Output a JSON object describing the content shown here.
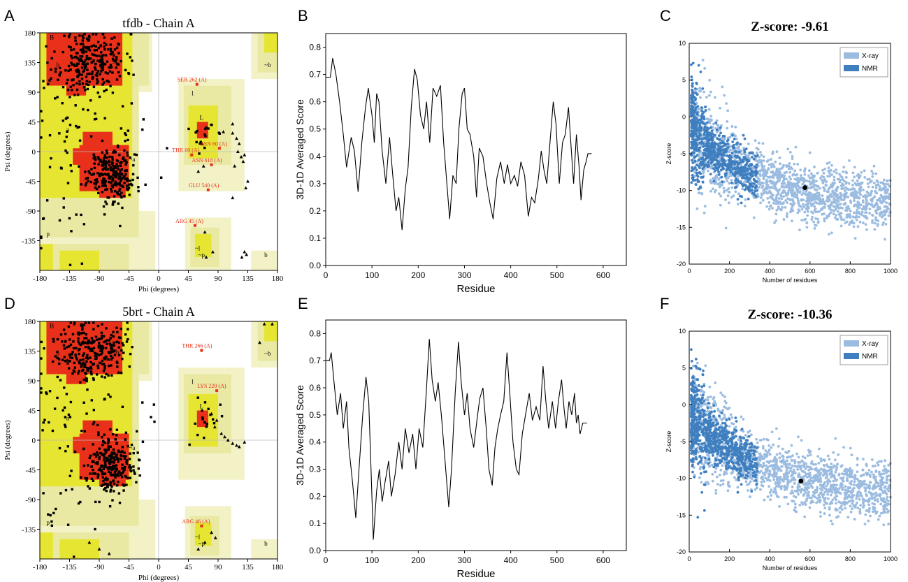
{
  "figure": {
    "panel_letters": [
      "A",
      "B",
      "C",
      "D",
      "E",
      "F"
    ]
  },
  "colors": {
    "core": "#e8301a",
    "allowed": "#e6e632",
    "generous": "#e9e9a3",
    "pale": "#f2f2c6",
    "xray": "#9bbce0",
    "nmr": "#3f7fbf",
    "line": "#000000"
  },
  "chart_data": [
    {
      "id": "A",
      "type": "scatter",
      "subtype": "ramachandran",
      "title": "tfdb - Chain A",
      "xlabel": "Phi (degrees)",
      "ylabel": "Psi (degrees)",
      "xlim": [
        -180,
        180
      ],
      "ylim": [
        -180,
        180
      ],
      "xticks": [
        -180,
        -135,
        -90,
        -45,
        0,
        45,
        90,
        135,
        180
      ],
      "yticks": [
        -135,
        -90,
        -45,
        0,
        45,
        90,
        135,
        180
      ],
      "region_labels": [
        "B",
        "b",
        "~b",
        "l",
        "L",
        "a",
        "~a",
        "~l",
        "p",
        "~p",
        "b",
        "~b"
      ],
      "outliers": [
        {
          "label": "SER 262 (A)",
          "x": 58,
          "y": 102
        },
        {
          "label": "ASN 60 (A)",
          "x": 92,
          "y": 5
        },
        {
          "label": "THR 60 (A)",
          "x": 50,
          "y": -5
        },
        {
          "label": "ASN 618 (A)",
          "x": 80,
          "y": -20
        },
        {
          "label": "GLU 540 (A)",
          "x": 75,
          "y": -58
        },
        {
          "label": "ARG 45 (A)",
          "x": 55,
          "y": -112
        }
      ],
      "gly_points": [
        [
          112,
          28
        ],
        [
          118,
          20
        ],
        [
          122,
          12
        ],
        [
          120,
          0
        ],
        [
          125,
          -8
        ],
        [
          128,
          -15
        ],
        [
          115,
          -22
        ],
        [
          130,
          -5
        ],
        [
          135,
          -45
        ],
        [
          132,
          -55
        ],
        [
          112,
          -70
        ],
        [
          130,
          -152
        ],
        [
          126,
          -160
        ],
        [
          133,
          -156
        ],
        [
          70,
          -122
        ],
        [
          82,
          -152
        ],
        [
          72,
          -160
        ],
        [
          68,
          -22
        ],
        [
          60,
          -30
        ],
        [
          112,
          42
        ],
        [
          98,
          30
        ],
        [
          66,
          12
        ]
      ],
      "cluster_seed": 11
    },
    {
      "id": "B",
      "type": "line",
      "xlabel": "Residue",
      "ylabel": "3D-1D Averaged Score",
      "xlim": [
        0,
        650
      ],
      "ylim": [
        0,
        0.85
      ],
      "xticks": [
        0,
        100,
        200,
        300,
        400,
        500,
        600
      ],
      "yticks": [
        0.0,
        0.1,
        0.2,
        0.3,
        0.4,
        0.5,
        0.6,
        0.7,
        0.8
      ],
      "points": [
        [
          0,
          0.69
        ],
        [
          10,
          0.69
        ],
        [
          15,
          0.76
        ],
        [
          22,
          0.7
        ],
        [
          30,
          0.6
        ],
        [
          38,
          0.48
        ],
        [
          45,
          0.36
        ],
        [
          55,
          0.47
        ],
        [
          62,
          0.42
        ],
        [
          70,
          0.27
        ],
        [
          78,
          0.45
        ],
        [
          86,
          0.58
        ],
        [
          92,
          0.65
        ],
        [
          100,
          0.55
        ],
        [
          105,
          0.45
        ],
        [
          110,
          0.63
        ],
        [
          115,
          0.6
        ],
        [
          122,
          0.42
        ],
        [
          130,
          0.3
        ],
        [
          138,
          0.47
        ],
        [
          145,
          0.33
        ],
        [
          152,
          0.2
        ],
        [
          158,
          0.25
        ],
        [
          165,
          0.13
        ],
        [
          172,
          0.28
        ],
        [
          178,
          0.36
        ],
        [
          185,
          0.58
        ],
        [
          192,
          0.72
        ],
        [
          198,
          0.68
        ],
        [
          205,
          0.55
        ],
        [
          212,
          0.5
        ],
        [
          218,
          0.6
        ],
        [
          225,
          0.45
        ],
        [
          232,
          0.65
        ],
        [
          240,
          0.62
        ],
        [
          248,
          0.66
        ],
        [
          255,
          0.45
        ],
        [
          262,
          0.3
        ],
        [
          268,
          0.17
        ],
        [
          275,
          0.33
        ],
        [
          282,
          0.3
        ],
        [
          288,
          0.5
        ],
        [
          295,
          0.63
        ],
        [
          300,
          0.65
        ],
        [
          306,
          0.5
        ],
        [
          312,
          0.48
        ],
        [
          320,
          0.4
        ],
        [
          326,
          0.25
        ],
        [
          332,
          0.43
        ],
        [
          340,
          0.4
        ],
        [
          348,
          0.3
        ],
        [
          355,
          0.23
        ],
        [
          362,
          0.17
        ],
        [
          370,
          0.32
        ],
        [
          378,
          0.38
        ],
        [
          386,
          0.3
        ],
        [
          393,
          0.37
        ],
        [
          400,
          0.3
        ],
        [
          408,
          0.33
        ],
        [
          415,
          0.29
        ],
        [
          422,
          0.38
        ],
        [
          430,
          0.33
        ],
        [
          438,
          0.18
        ],
        [
          445,
          0.25
        ],
        [
          452,
          0.23
        ],
        [
          460,
          0.32
        ],
        [
          466,
          0.42
        ],
        [
          472,
          0.35
        ],
        [
          478,
          0.3
        ],
        [
          485,
          0.45
        ],
        [
          492,
          0.6
        ],
        [
          498,
          0.52
        ],
        [
          505,
          0.3
        ],
        [
          512,
          0.45
        ],
        [
          518,
          0.48
        ],
        [
          525,
          0.58
        ],
        [
          530,
          0.45
        ],
        [
          536,
          0.3
        ],
        [
          542,
          0.48
        ],
        [
          548,
          0.36
        ],
        [
          552,
          0.24
        ],
        [
          558,
          0.35
        ],
        [
          563,
          0.38
        ],
        [
          567,
          0.41
        ],
        [
          575,
          0.41
        ]
      ]
    },
    {
      "id": "C",
      "type": "scatter",
      "subtype": "prosa_zscore",
      "title": "Z-score: -9.61",
      "xlabel": "Number of residues",
      "ylabel": "Z-score",
      "xlim": [
        0,
        1000
      ],
      "ylim": [
        -20,
        10
      ],
      "xticks": [
        0,
        200,
        400,
        600,
        800,
        1000
      ],
      "yticks": [
        -20,
        -15,
        -10,
        -5,
        0,
        5,
        10
      ],
      "legend": [
        {
          "name": "X-ray"
        },
        {
          "name": "NMR"
        }
      ],
      "legend_position": "top-right",
      "highlight": {
        "x": 575,
        "y": -9.61
      },
      "density_seed": 21
    },
    {
      "id": "D",
      "type": "scatter",
      "subtype": "ramachandran",
      "title": "5brt - Chain A",
      "xlabel": "Phi (degrees)",
      "ylabel": "Psi (degrees)",
      "xlim": [
        -180,
        180
      ],
      "ylim": [
        -180,
        180
      ],
      "xticks": [
        -180,
        -135,
        -90,
        -45,
        0,
        45,
        90,
        135,
        180
      ],
      "yticks": [
        -135,
        -90,
        -45,
        0,
        45,
        90,
        135,
        180
      ],
      "region_labels": [
        "B",
        "b",
        "~b",
        "l",
        "L",
        "a",
        "~a",
        "~l",
        "p",
        "~p",
        "b",
        "~b"
      ],
      "outliers": [
        {
          "label": "THR 266 (A)",
          "x": 65,
          "y": 136
        },
        {
          "label": "LYS 220 (A)",
          "x": 88,
          "y": 75
        },
        {
          "label": "ARG 46 (A)",
          "x": 65,
          "y": -130
        }
      ],
      "gly_points": [
        [
          80,
          40
        ],
        [
          88,
          30
        ],
        [
          85,
          20
        ],
        [
          95,
          10
        ],
        [
          100,
          5
        ],
        [
          105,
          0
        ],
        [
          112,
          -5
        ],
        [
          118,
          -8
        ],
        [
          122,
          -10
        ],
        [
          130,
          -3
        ],
        [
          160,
          176
        ],
        [
          172,
          176
        ],
        [
          153,
          148
        ],
        [
          80,
          -140
        ],
        [
          86,
          -148
        ],
        [
          70,
          -155
        ],
        [
          60,
          -165
        ],
        [
          -90,
          -165
        ],
        [
          -105,
          -155
        ],
        [
          -75,
          -172
        ]
      ],
      "cluster_seed": 37
    },
    {
      "id": "E",
      "type": "line",
      "xlabel": "Residue",
      "ylabel": "3D-1D Averaged Score",
      "xlim": [
        0,
        650
      ],
      "ylim": [
        0,
        0.85
      ],
      "xticks": [
        0,
        100,
        200,
        300,
        400,
        500,
        600
      ],
      "yticks": [
        0.0,
        0.1,
        0.2,
        0.3,
        0.4,
        0.5,
        0.6,
        0.7,
        0.8
      ],
      "points": [
        [
          0,
          0.7
        ],
        [
          8,
          0.7
        ],
        [
          12,
          0.73
        ],
        [
          18,
          0.62
        ],
        [
          25,
          0.5
        ],
        [
          32,
          0.58
        ],
        [
          38,
          0.45
        ],
        [
          45,
          0.55
        ],
        [
          50,
          0.38
        ],
        [
          58,
          0.25
        ],
        [
          65,
          0.12
        ],
        [
          72,
          0.3
        ],
        [
          80,
          0.5
        ],
        [
          87,
          0.64
        ],
        [
          93,
          0.55
        ],
        [
          98,
          0.3
        ],
        [
          103,
          0.04
        ],
        [
          110,
          0.22
        ],
        [
          116,
          0.3
        ],
        [
          122,
          0.18
        ],
        [
          128,
          0.25
        ],
        [
          136,
          0.33
        ],
        [
          142,
          0.2
        ],
        [
          150,
          0.28
        ],
        [
          158,
          0.4
        ],
        [
          165,
          0.3
        ],
        [
          172,
          0.45
        ],
        [
          180,
          0.36
        ],
        [
          188,
          0.43
        ],
        [
          195,
          0.3
        ],
        [
          202,
          0.45
        ],
        [
          210,
          0.38
        ],
        [
          218,
          0.6
        ],
        [
          224,
          0.78
        ],
        [
          230,
          0.63
        ],
        [
          237,
          0.55
        ],
        [
          243,
          0.62
        ],
        [
          250,
          0.5
        ],
        [
          258,
          0.33
        ],
        [
          266,
          0.16
        ],
        [
          272,
          0.3
        ],
        [
          280,
          0.58
        ],
        [
          287,
          0.77
        ],
        [
          293,
          0.62
        ],
        [
          300,
          0.5
        ],
        [
          306,
          0.58
        ],
        [
          312,
          0.45
        ],
        [
          320,
          0.38
        ],
        [
          327,
          0.48
        ],
        [
          333,
          0.56
        ],
        [
          340,
          0.6
        ],
        [
          347,
          0.45
        ],
        [
          353,
          0.3
        ],
        [
          360,
          0.24
        ],
        [
          366,
          0.38
        ],
        [
          372,
          0.45
        ],
        [
          378,
          0.5
        ],
        [
          385,
          0.55
        ],
        [
          392,
          0.73
        ],
        [
          398,
          0.58
        ],
        [
          405,
          0.4
        ],
        [
          412,
          0.3
        ],
        [
          418,
          0.28
        ],
        [
          425,
          0.43
        ],
        [
          432,
          0.5
        ],
        [
          440,
          0.58
        ],
        [
          447,
          0.48
        ],
        [
          455,
          0.53
        ],
        [
          463,
          0.48
        ],
        [
          470,
          0.68
        ],
        [
          476,
          0.55
        ],
        [
          482,
          0.45
        ],
        [
          490,
          0.55
        ],
        [
          497,
          0.45
        ],
        [
          503,
          0.55
        ],
        [
          510,
          0.63
        ],
        [
          515,
          0.53
        ],
        [
          520,
          0.45
        ],
        [
          526,
          0.55
        ],
        [
          532,
          0.5
        ],
        [
          538,
          0.58
        ],
        [
          542,
          0.47
        ],
        [
          546,
          0.5
        ],
        [
          550,
          0.43
        ],
        [
          556,
          0.47
        ],
        [
          565,
          0.47
        ]
      ]
    },
    {
      "id": "F",
      "type": "scatter",
      "subtype": "prosa_zscore",
      "title": "Z-score: -10.36",
      "xlabel": "Number of residues",
      "ylabel": "Z-score",
      "xlim": [
        0,
        1000
      ],
      "ylim": [
        -20,
        10
      ],
      "xticks": [
        0,
        200,
        400,
        600,
        800,
        1000
      ],
      "yticks": [
        -20,
        -15,
        -10,
        -5,
        0,
        5,
        10
      ],
      "legend": [
        {
          "name": "X-ray"
        },
        {
          "name": "NMR"
        }
      ],
      "legend_position": "top-right",
      "highlight": {
        "x": 555,
        "y": -10.36
      },
      "density_seed": 53
    }
  ]
}
